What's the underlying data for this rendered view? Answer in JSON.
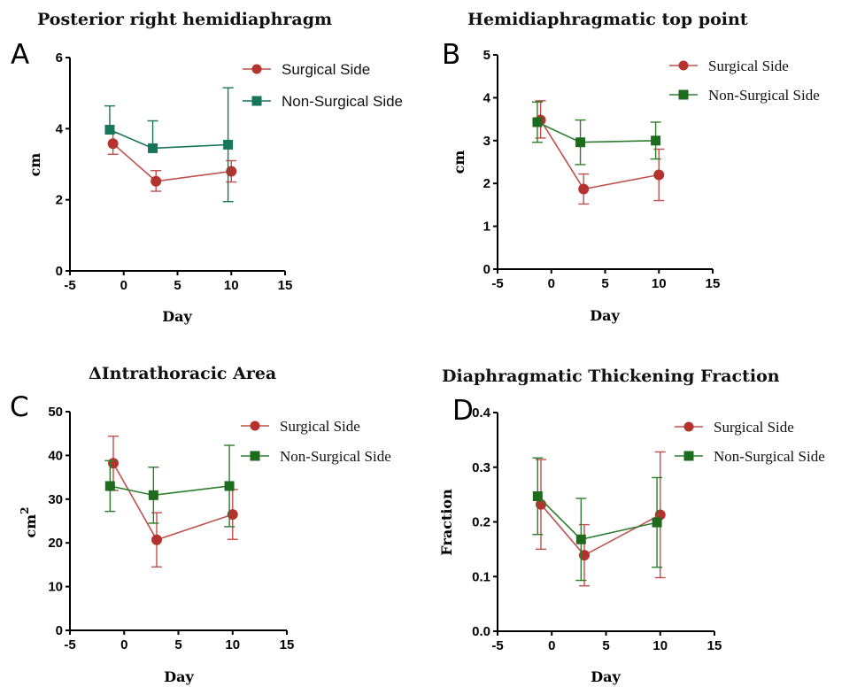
{
  "chart_data": [
    {
      "panel": "A",
      "type": "line",
      "title": "Posterior right hemidiaphragm",
      "xlabel": "Day",
      "ylabel": "cm",
      "xlim": [
        -5,
        15
      ],
      "ylim": [
        0,
        6
      ],
      "xticks": [
        "-5",
        "0",
        "5",
        "10",
        "15"
      ],
      "yticks": [
        "0",
        "2",
        "4",
        "6"
      ],
      "legend_position": "top-right",
      "series": [
        {
          "name": "Surgical Side",
          "color": "#b5332e",
          "line_color": "#c0504d",
          "marker": "circle",
          "x": [
            -1,
            3,
            10
          ],
          "y": [
            3.58,
            2.52,
            2.8
          ],
          "err_low": [
            0.3,
            0.28,
            0.3
          ],
          "err_high": [
            0.3,
            0.3,
            0.3
          ]
        },
        {
          "name": "Non-Surgical Side",
          "color": "#17755a",
          "line_color": "#17755a",
          "marker": "square",
          "x": [
            -1.3,
            2.7,
            9.7
          ],
          "y": [
            3.97,
            3.45,
            3.55
          ],
          "err_low": [
            0.0,
            0.0,
            1.6
          ],
          "err_high": [
            0.67,
            0.77,
            1.6
          ]
        }
      ]
    },
    {
      "panel": "B",
      "type": "line",
      "title": "Hemidiaphragmatic top point",
      "xlabel": "Day",
      "ylabel": "cm",
      "xlim": [
        -5,
        15
      ],
      "ylim": [
        0,
        5
      ],
      "xticks": [
        "-5",
        "0",
        "5",
        "10",
        "15"
      ],
      "yticks": [
        "0",
        "1",
        "2",
        "3",
        "4",
        "5"
      ],
      "legend_position": "top-right",
      "series": [
        {
          "name": "Surgical Side",
          "color": "#b5332e",
          "line_color": "#c0504d",
          "marker": "circle",
          "x": [
            -1,
            3,
            10
          ],
          "y": [
            3.48,
            1.87,
            2.2
          ],
          "err_low": [
            0.42,
            0.35,
            0.6
          ],
          "err_high": [
            0.45,
            0.35,
            0.6
          ]
        },
        {
          "name": "Non-Surgical Side",
          "color": "#1e6b1e",
          "line_color": "#2e7d2e",
          "marker": "square",
          "x": [
            -1.3,
            2.7,
            9.7
          ],
          "y": [
            3.43,
            2.96,
            3.0
          ],
          "err_low": [
            0.47,
            0.52,
            0.43
          ],
          "err_high": [
            0.47,
            0.52,
            0.43
          ]
        }
      ]
    },
    {
      "panel": "C",
      "type": "line",
      "title": "ΔIntrathoracic Area",
      "xlabel": "Day",
      "ylabel": "cm",
      "ylabel_superscript": "2",
      "xlim": [
        -5,
        15
      ],
      "ylim": [
        0,
        50
      ],
      "xticks": [
        "-5",
        "0",
        "5",
        "10",
        "15"
      ],
      "yticks": [
        "0",
        "10",
        "20",
        "30",
        "40",
        "50"
      ],
      "legend_position": "top-right",
      "series": [
        {
          "name": "Surgical Side",
          "color": "#b5332e",
          "line_color": "#c0504d",
          "marker": "circle",
          "x": [
            -1,
            3,
            10
          ],
          "y": [
            38.2,
            20.7,
            26.5
          ],
          "err_low": [
            6.2,
            6.2,
            5.7
          ],
          "err_high": [
            6.2,
            6.2,
            5.7
          ]
        },
        {
          "name": "Non-Surgical Side",
          "color": "#1e6b1e",
          "line_color": "#2e7d2e",
          "marker": "square",
          "x": [
            -1.3,
            2.7,
            9.7
          ],
          "y": [
            33.0,
            30.9,
            33.0
          ],
          "err_low": [
            5.8,
            6.4,
            9.3
          ],
          "err_high": [
            5.8,
            6.4,
            9.3
          ]
        }
      ]
    },
    {
      "panel": "D",
      "type": "line",
      "title": "Diaphragmatic Thickening Fraction",
      "xlabel": "Day",
      "ylabel": "Fraction",
      "xlim": [
        -5,
        15
      ],
      "ylim": [
        0,
        0.4
      ],
      "xticks": [
        "-5",
        "0",
        "5",
        "10",
        "15"
      ],
      "yticks": [
        "0.0",
        "0.1",
        "0.2",
        "0.3",
        "0.4"
      ],
      "legend_position": "top-right",
      "series": [
        {
          "name": "Surgical Side",
          "color": "#b5332e",
          "line_color": "#c0504d",
          "marker": "circle",
          "x": [
            -1,
            3,
            10
          ],
          "y": [
            0.232,
            0.139,
            0.213
          ],
          "err_low": [
            0.082,
            0.056,
            0.115
          ],
          "err_high": [
            0.082,
            0.056,
            0.115
          ]
        },
        {
          "name": "Non-Surgical Side",
          "color": "#1e6b1e",
          "line_color": "#2e7d2e",
          "marker": "square",
          "x": [
            -1.3,
            2.7,
            9.7
          ],
          "y": [
            0.247,
            0.168,
            0.199
          ],
          "err_low": [
            0.07,
            0.075,
            0.082
          ],
          "err_high": [
            0.07,
            0.075,
            0.082
          ]
        }
      ]
    }
  ]
}
